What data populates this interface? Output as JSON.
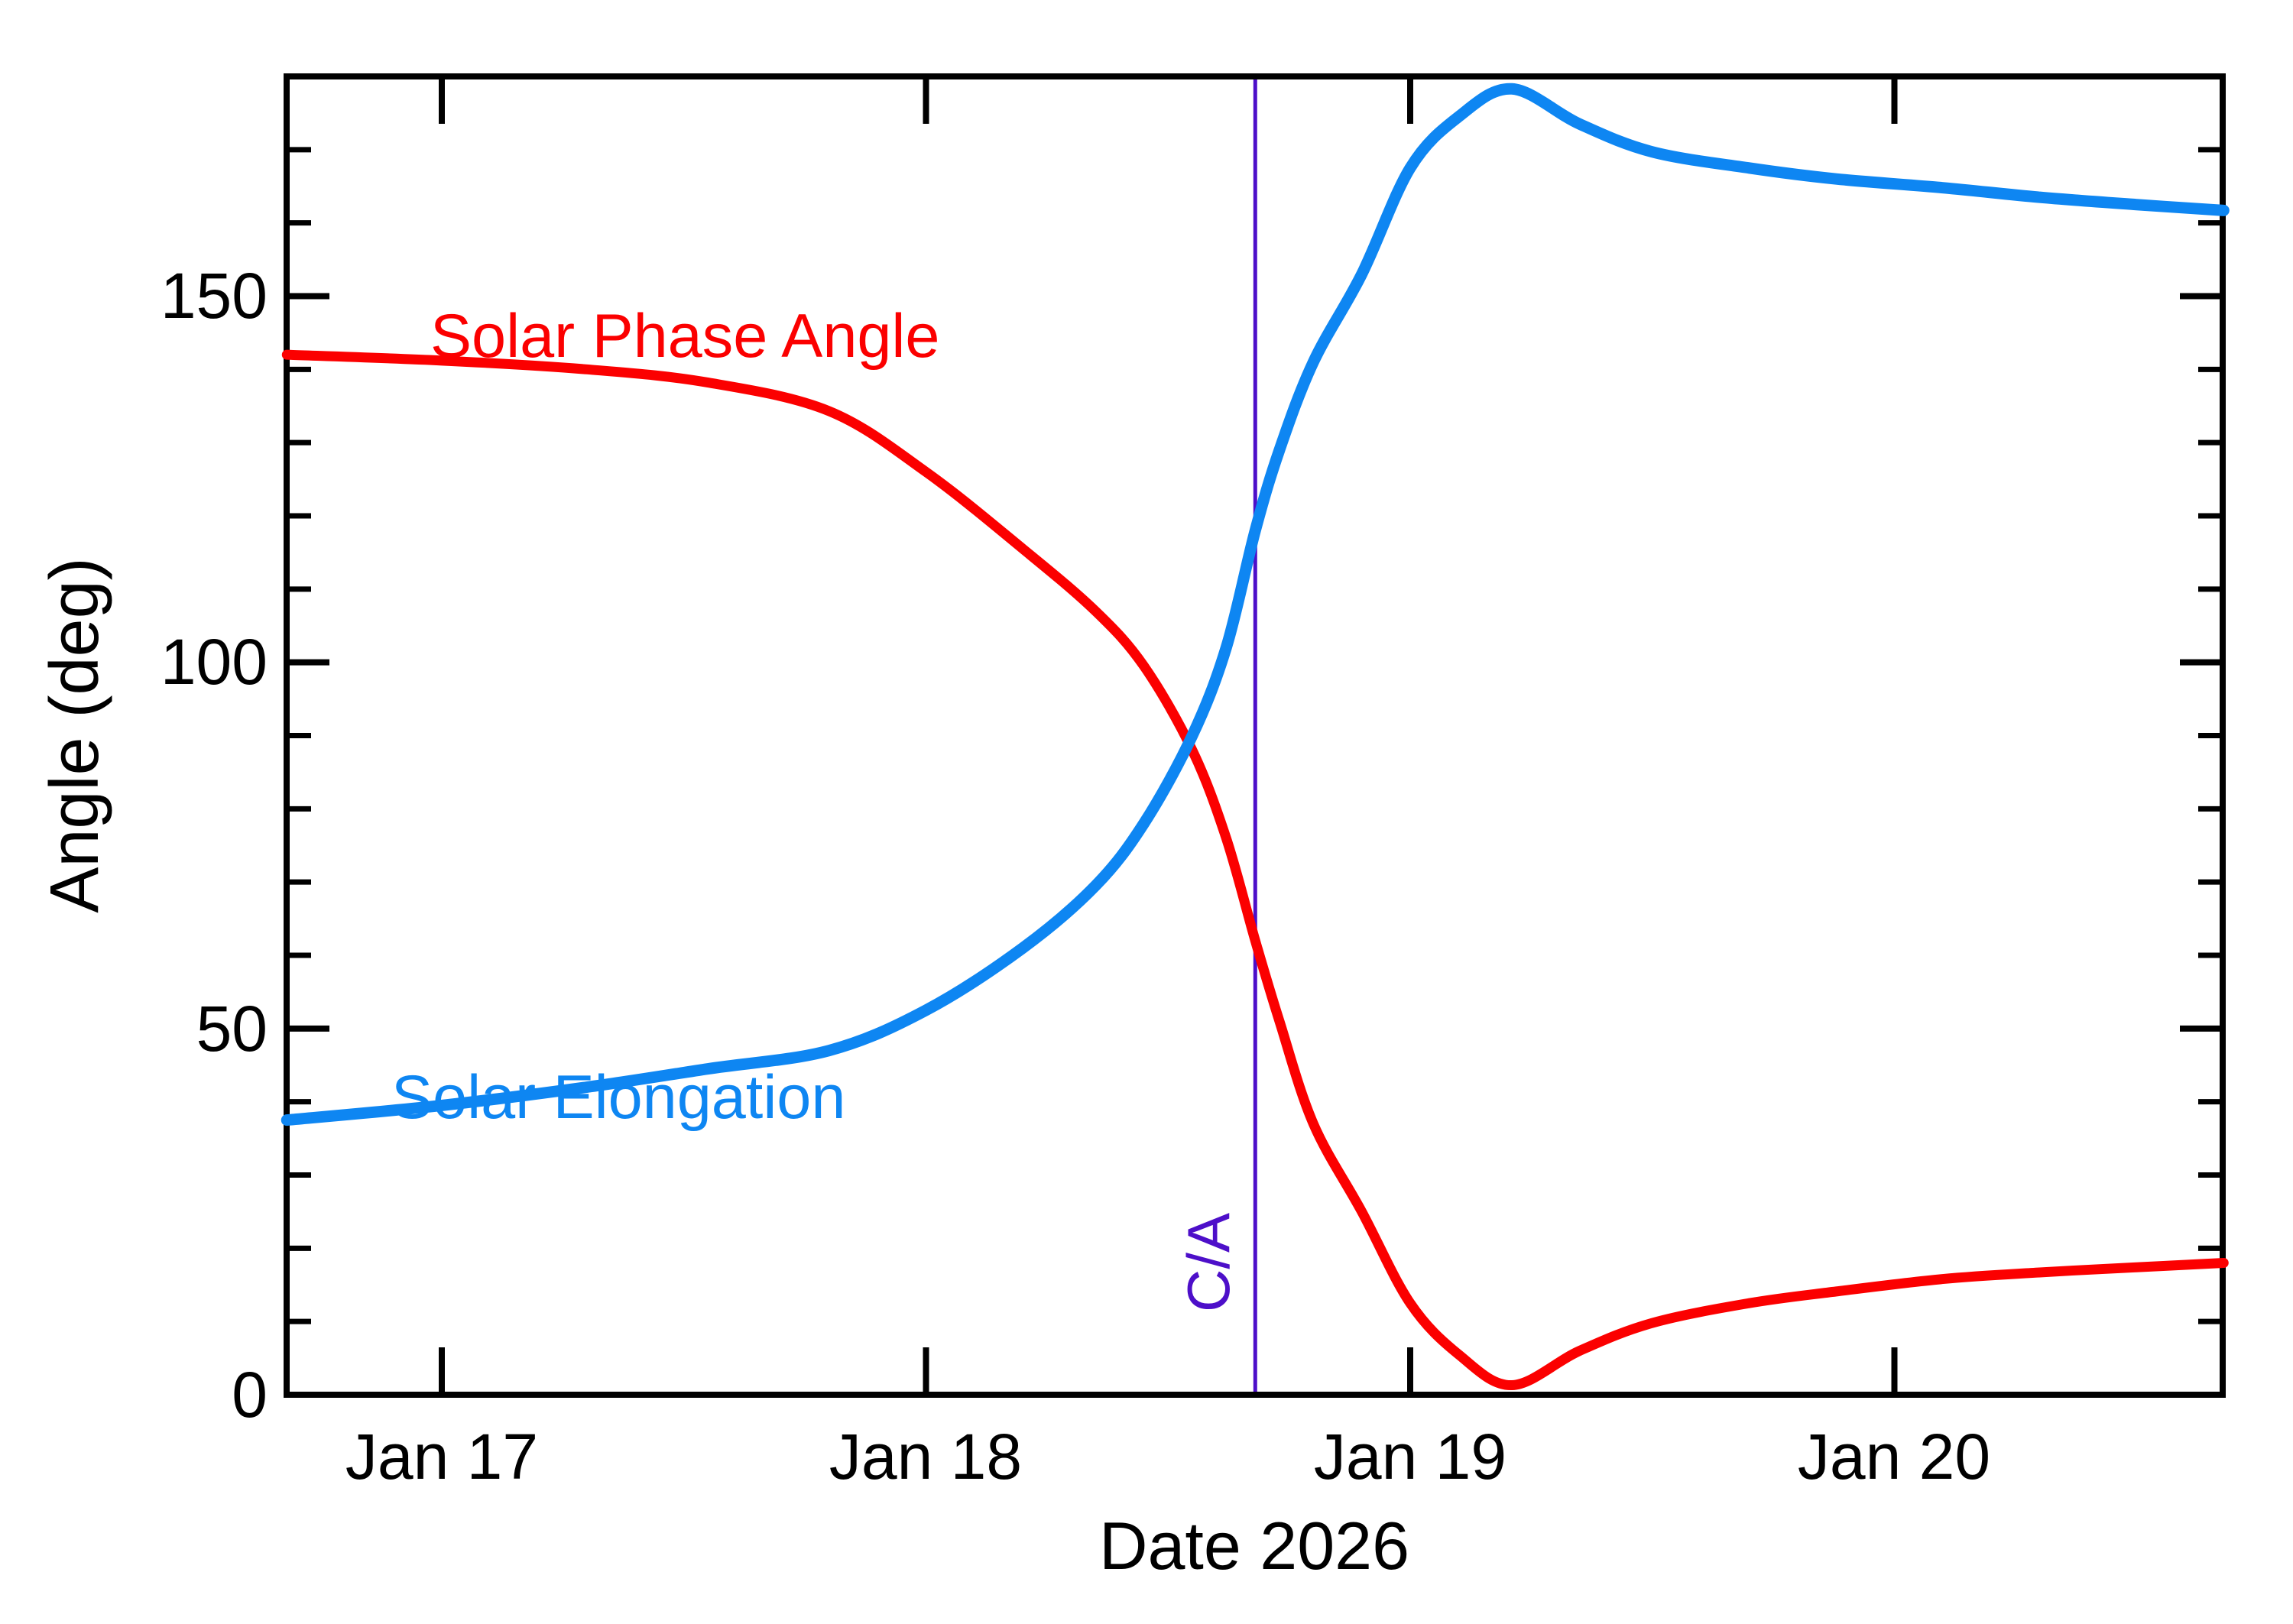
{
  "chart_data": {
    "type": "line",
    "title": "",
    "xlabel": "Date 2026",
    "ylabel": "Angle (deg)",
    "xlim_days": [
      16.68,
      20.68
    ],
    "ylim": [
      0,
      180
    ],
    "grid": false,
    "legend_position": "inline-curve-labels",
    "x_ticks": [
      {
        "day": 17,
        "label": "Jan 17"
      },
      {
        "day": 18,
        "label": "Jan 18"
      },
      {
        "day": 19,
        "label": "Jan 19"
      },
      {
        "day": 20,
        "label": "Jan 20"
      }
    ],
    "y_major_ticks": [
      0,
      50,
      100,
      150
    ],
    "y_minor_step": 10,
    "series": [
      {
        "name": "Solar Phase Angle",
        "color": "#fb0000",
        "stroke_width": 13,
        "points": [
          [
            16.68,
            142.0
          ],
          [
            17.0,
            141.2
          ],
          [
            17.3,
            140.0
          ],
          [
            17.55,
            138.2
          ],
          [
            17.8,
            134.3
          ],
          [
            18.0,
            126.0
          ],
          [
            18.2,
            115.5
          ],
          [
            18.35,
            107.0
          ],
          [
            18.45,
            99.5
          ],
          [
            18.55,
            88.0
          ],
          [
            18.62,
            76.0
          ],
          [
            18.68,
            62.0
          ],
          [
            18.73,
            51.0
          ],
          [
            18.8,
            37.0
          ],
          [
            18.9,
            25.0
          ],
          [
            19.0,
            12.5
          ],
          [
            19.1,
            5.5
          ],
          [
            19.21,
            1.3
          ],
          [
            19.35,
            6.0
          ],
          [
            19.5,
            9.8
          ],
          [
            19.7,
            12.5
          ],
          [
            19.88,
            14.1
          ],
          [
            20.1,
            15.8
          ],
          [
            20.3,
            16.7
          ],
          [
            20.5,
            17.4
          ],
          [
            20.68,
            18.0
          ]
        ]
      },
      {
        "name": "Solar Elongation",
        "color": "#0e86f2",
        "stroke_width": 15,
        "points": [
          [
            16.68,
            37.5
          ],
          [
            17.0,
            39.5
          ],
          [
            17.3,
            42.0
          ],
          [
            17.55,
            44.5
          ],
          [
            17.8,
            47.0
          ],
          [
            18.0,
            52.5
          ],
          [
            18.2,
            61.0
          ],
          [
            18.35,
            69.5
          ],
          [
            18.45,
            78.0
          ],
          [
            18.55,
            90.0
          ],
          [
            18.62,
            102.0
          ],
          [
            18.68,
            118.0
          ],
          [
            18.73,
            129.0
          ],
          [
            18.8,
            141.0
          ],
          [
            18.9,
            153.0
          ],
          [
            19.0,
            167.5
          ],
          [
            19.1,
            174.5
          ],
          [
            19.21,
            178.3
          ],
          [
            19.35,
            173.5
          ],
          [
            19.5,
            169.7
          ],
          [
            19.7,
            167.5
          ],
          [
            19.88,
            166.0
          ],
          [
            20.1,
            164.8
          ],
          [
            20.3,
            163.5
          ],
          [
            20.5,
            162.5
          ],
          [
            20.68,
            161.7
          ]
        ]
      }
    ],
    "annotations": {
      "closest_approach": {
        "label": "C/A",
        "day": 18.68,
        "color": "#4d0fc9"
      }
    },
    "axis_color": "#000000",
    "background_color": "#ffffff"
  }
}
